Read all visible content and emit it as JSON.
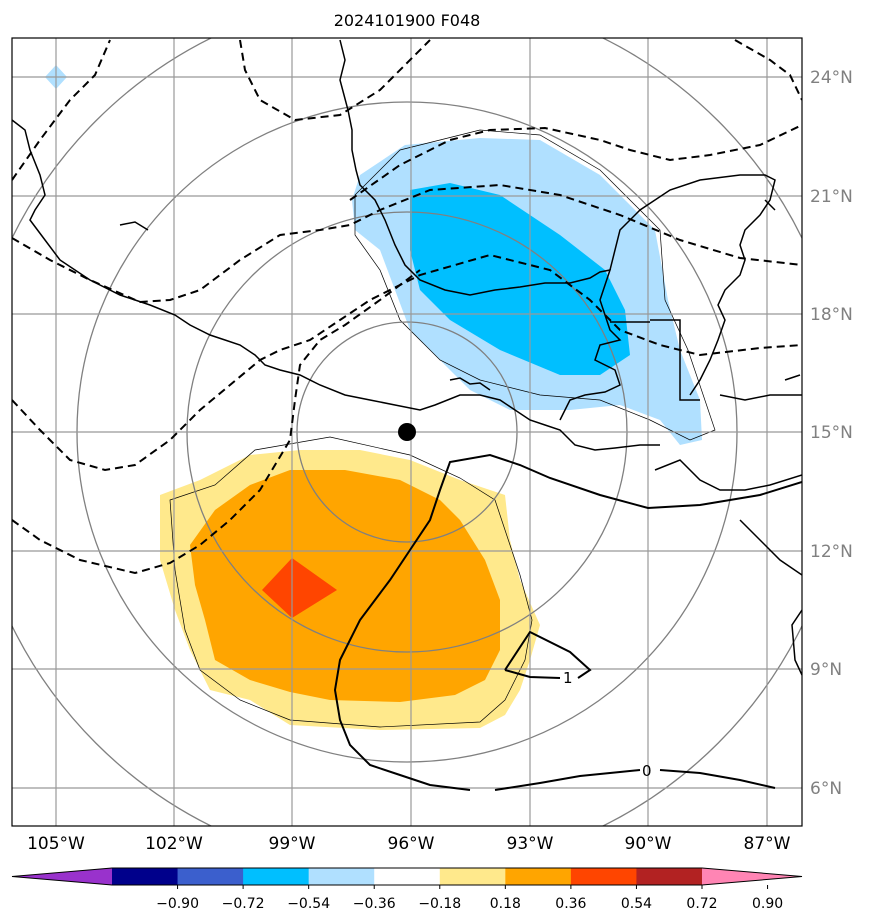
{
  "title": "2024101900 F048",
  "map": {
    "lat_labels": [
      "24°N",
      "21°N",
      "18°N",
      "15°N",
      "12°N",
      "9°N",
      "6°N"
    ],
    "lon_labels": [
      "105°W",
      "102°W",
      "99°W",
      "96°W",
      "93°W",
      "90°W",
      "87°W"
    ],
    "lat_extent": [
      5,
      25
    ],
    "lon_extent": [
      -106,
      -86
    ],
    "center_marker": {
      "lon": -96,
      "lat": 15
    },
    "contour_labels": [
      "1",
      "0"
    ],
    "colors": {
      "grid": "#999999",
      "range_rings": "#808080",
      "coast": "#000000"
    }
  },
  "colorbar": {
    "ticks": [
      "−0.90",
      "−0.72",
      "−0.54",
      "−0.36",
      "−0.18",
      "0.18",
      "0.36",
      "0.54",
      "0.72",
      "0.90"
    ],
    "colors": [
      "#9932cc",
      "#00008b",
      "#3b5fcd",
      "#00bfff",
      "#b0e0ff",
      "#ffffff",
      "#ffe98c",
      "#ffa500",
      "#ff4500",
      "#b22222",
      "#ff85b4"
    ]
  }
}
